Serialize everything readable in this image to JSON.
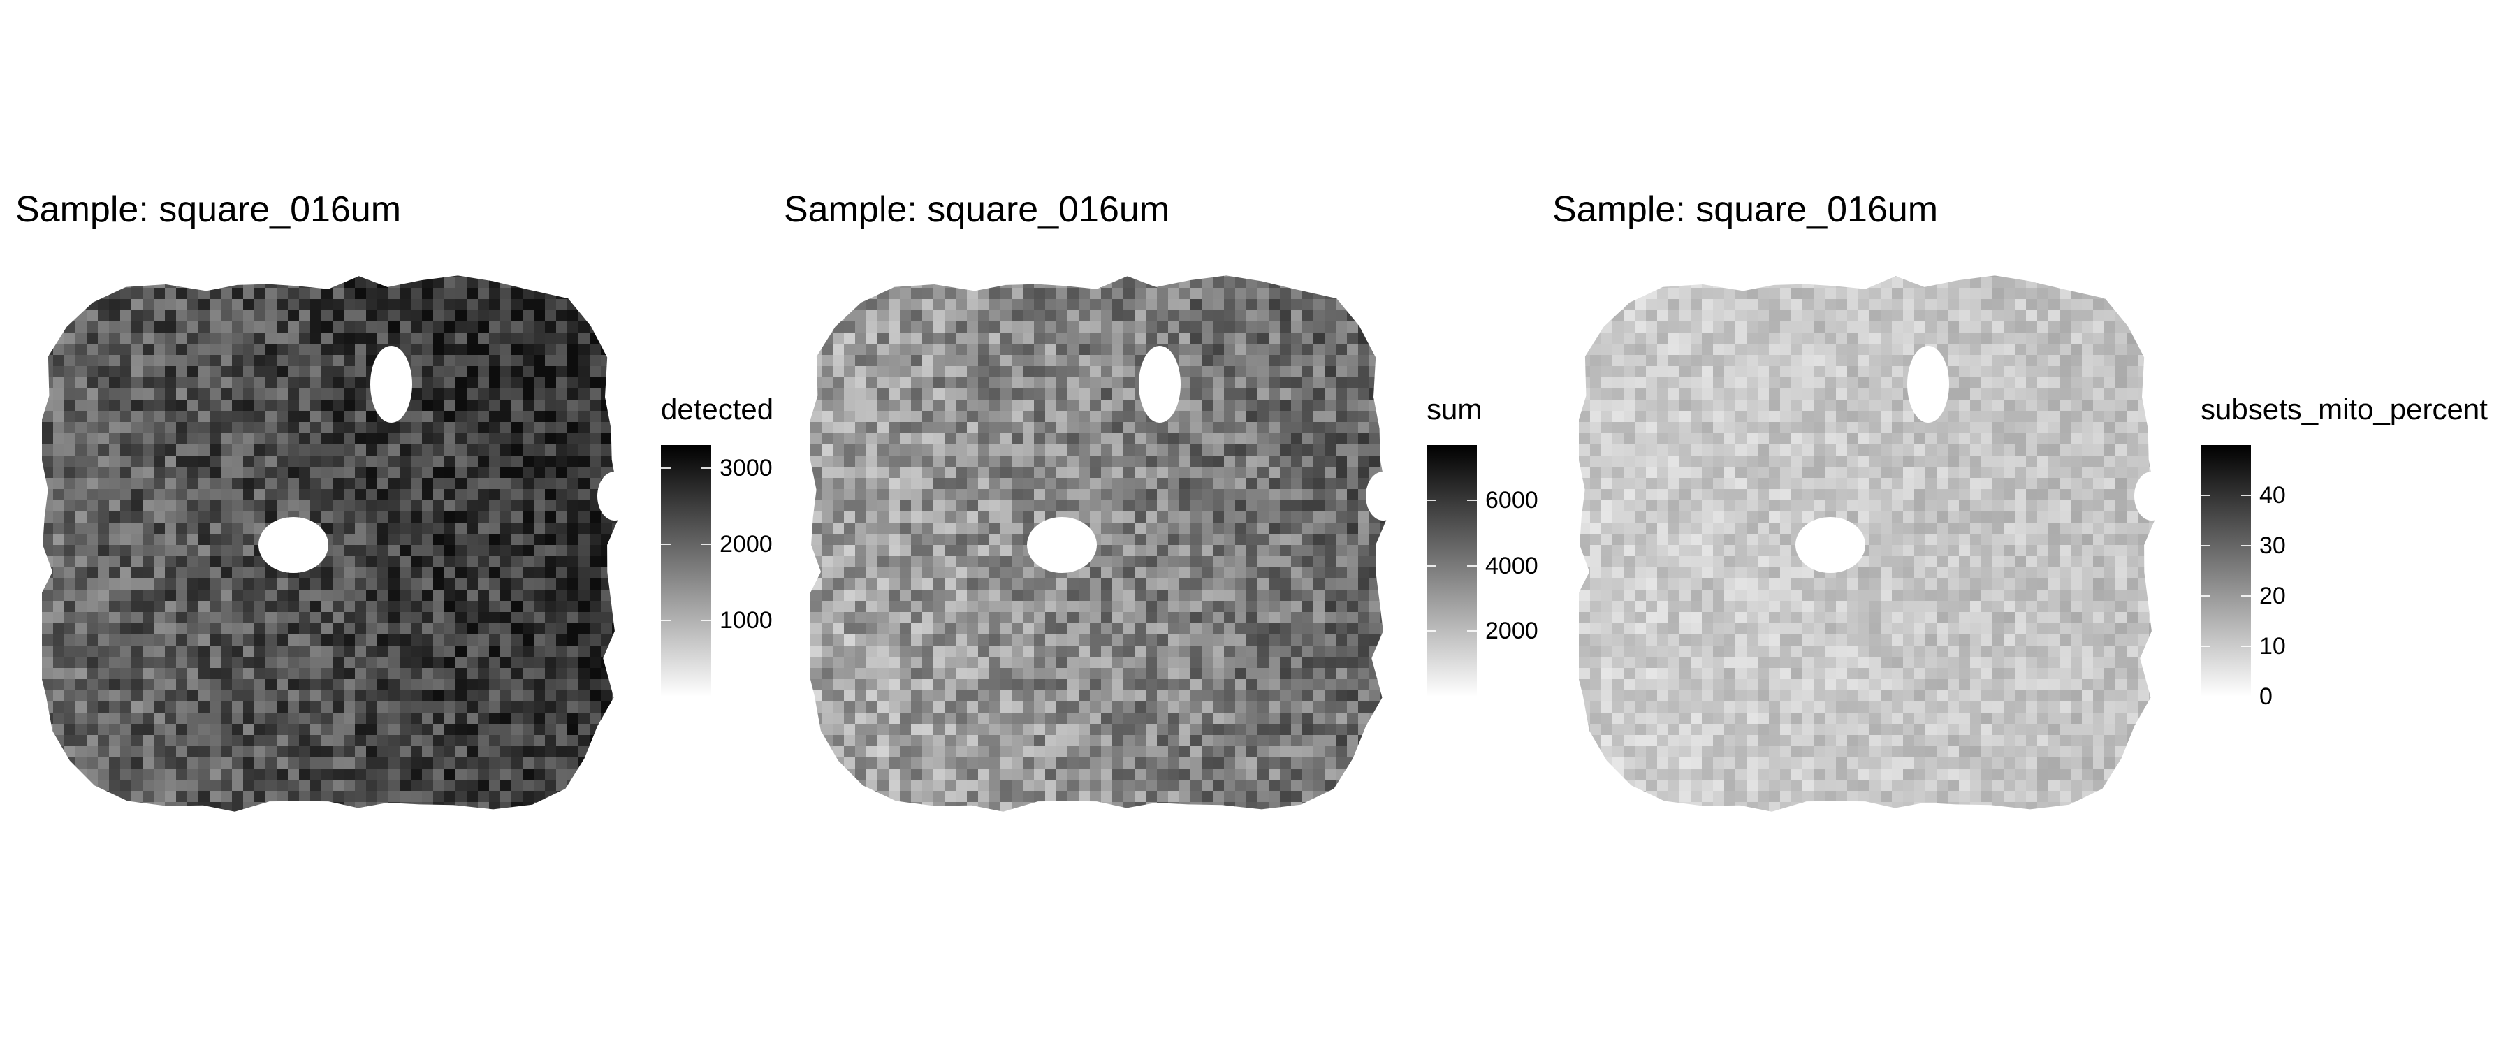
{
  "figure": {
    "panels": [
      {
        "title": "Sample: square_016um",
        "legend": {
          "title": "detected",
          "ticks": [
            "1000",
            "2000",
            "3000"
          ],
          "tick_values": [
            1000,
            2000,
            3000
          ],
          "min": 0,
          "max": 3300
        },
        "tone": {
          "base": 0.62,
          "variation": 0.2
        }
      },
      {
        "title": "Sample: square_016um",
        "legend": {
          "title": "sum",
          "ticks": [
            "2000",
            "4000",
            "6000"
          ],
          "tick_values": [
            2000,
            4000,
            6000
          ],
          "min": 0,
          "max": 7700
        },
        "tone": {
          "base": 0.38,
          "variation": 0.2
        }
      },
      {
        "title": "Sample: square_016um",
        "legend": {
          "title": "subsets_mito_percent",
          "ticks": [
            "0",
            "10",
            "20",
            "30",
            "40"
          ],
          "tick_values": [
            0,
            10,
            20,
            30,
            40
          ],
          "min": 0,
          "max": 50
        },
        "tone": {
          "base": 0.2,
          "variation": 0.1
        }
      }
    ]
  },
  "chart_data": [
    {
      "type": "heatmap",
      "title": "Sample: square_016um",
      "legend_title": "detected",
      "legend_ticks": [
        1000,
        2000,
        3000
      ],
      "value_range": [
        0,
        3300
      ],
      "colormap": [
        "#ffffff",
        "#000000"
      ],
      "legend_placement": "right",
      "grid": false
    },
    {
      "type": "heatmap",
      "title": "Sample: square_016um",
      "legend_title": "sum",
      "legend_ticks": [
        2000,
        4000,
        6000
      ],
      "value_range": [
        0,
        7700
      ],
      "colormap": [
        "#ffffff",
        "#000000"
      ],
      "legend_placement": "right",
      "grid": false
    },
    {
      "type": "heatmap",
      "title": "Sample: square_016um",
      "legend_title": "subsets_mito_percent",
      "legend_ticks": [
        0,
        10,
        20,
        30,
        40
      ],
      "value_range": [
        0,
        50
      ],
      "colormap": [
        "#ffffff",
        "#000000"
      ],
      "legend_placement": "right",
      "grid": false
    }
  ]
}
